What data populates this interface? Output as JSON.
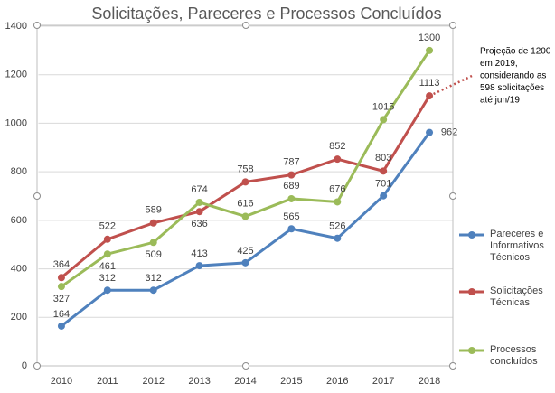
{
  "chart_data": {
    "type": "line",
    "title": "Solicitações, Pareceres e Processos Concluídos",
    "categories": [
      "2010",
      "2011",
      "2012",
      "2013",
      "2014",
      "2015",
      "2016",
      "2017",
      "2018"
    ],
    "series": [
      {
        "name": "Pareceres e Informativos Técnicos",
        "color": "#4f81bd",
        "values": [
          164,
          312,
          312,
          413,
          425,
          565,
          526,
          701,
          962
        ]
      },
      {
        "name": "Solicitações Técnicas",
        "color": "#c0504d",
        "values": [
          364,
          522,
          589,
          636,
          758,
          787,
          852,
          803,
          1113
        ]
      },
      {
        "name": "Processos concluídos",
        "color": "#9bbb59",
        "values": [
          327,
          461,
          509,
          674,
          616,
          689,
          676,
          1015,
          1300
        ]
      }
    ],
    "ylim": [
      0,
      1400
    ],
    "yticks": [
      0,
      200,
      400,
      600,
      800,
      1000,
      1200,
      1400
    ],
    "grid": true,
    "annotation": [
      "Projeção de 1200",
      "em 2019,",
      "considerando as",
      "598 solicitações",
      "até jun/19"
    ]
  }
}
